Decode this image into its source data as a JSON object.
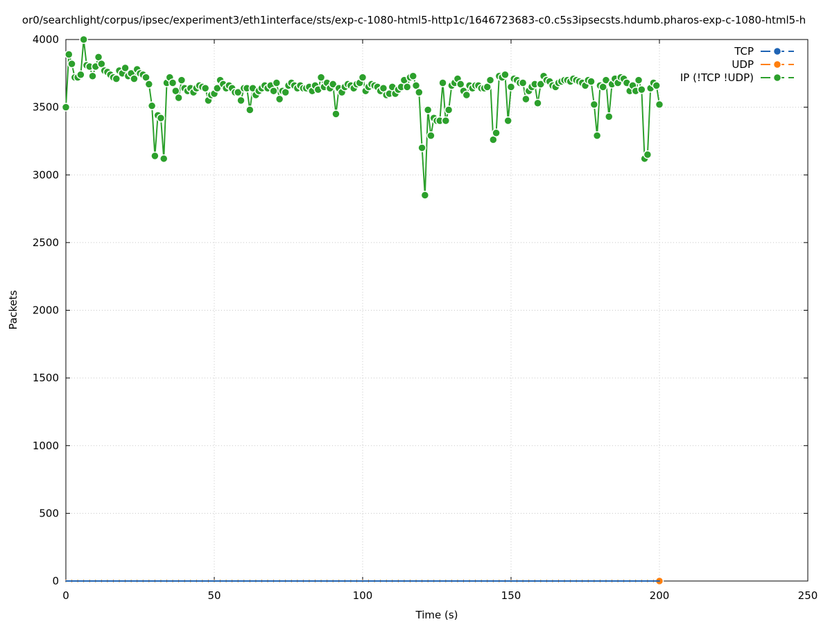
{
  "chart_data": {
    "type": "line",
    "title": "or0/searchlight/corpus/ipsec/experiment3/eth1interface/sts/exp-c-1080-html5-http1c/1646723683-c0.c5s3ipsecsts.hdumb.pharos-exp-c-1080-html5-h",
    "xlabel": "Time (s)",
    "ylabel": "Packets",
    "xlim": [
      0,
      250
    ],
    "ylim": [
      0,
      4000
    ],
    "xticks": [
      0,
      50,
      100,
      150,
      200,
      250
    ],
    "yticks": [
      0,
      500,
      1000,
      1500,
      2000,
      2500,
      3000,
      3500,
      4000
    ],
    "grid": true,
    "legend_position": "top-right",
    "series": [
      {
        "name": "TCP",
        "color": "#1f64b4",
        "x": [
          0,
          200
        ],
        "y": [
          0,
          0
        ]
      },
      {
        "name": "UDP",
        "color": "#ff7f0e",
        "x": [
          0,
          2,
          4,
          6,
          8,
          10,
          12,
          14,
          16,
          18,
          20,
          22,
          24,
          26,
          28,
          30,
          32,
          34,
          36,
          38,
          40,
          42,
          44,
          46,
          48,
          50,
          52,
          54,
          56,
          58,
          60,
          62,
          64,
          66,
          68,
          70,
          72,
          74,
          76,
          78,
          80,
          82,
          84,
          86,
          88,
          90,
          92,
          94,
          96,
          98,
          100,
          102,
          104,
          106,
          108,
          110,
          112,
          114,
          116,
          118,
          120,
          122,
          124,
          126,
          128,
          130,
          132,
          134,
          136,
          138,
          140,
          142,
          144,
          146,
          148,
          150,
          152,
          154,
          156,
          158,
          160,
          162,
          164,
          166,
          168,
          170,
          172,
          174,
          176,
          178,
          180,
          182,
          184,
          186,
          188,
          190,
          192,
          194,
          196,
          198,
          200
        ],
        "y": [
          0,
          0,
          0,
          0,
          0,
          0,
          0,
          0,
          0,
          0,
          0,
          0,
          0,
          0,
          0,
          0,
          0,
          0,
          0,
          0,
          0,
          0,
          0,
          0,
          0,
          0,
          0,
          0,
          0,
          0,
          0,
          0,
          0,
          0,
          0,
          0,
          0,
          0,
          0,
          0,
          0,
          0,
          0,
          0,
          0,
          0,
          0,
          0,
          0,
          0,
          0,
          0,
          0,
          0,
          0,
          0,
          0,
          0,
          0,
          0,
          0,
          0,
          0,
          0,
          0,
          0,
          0,
          0,
          0,
          0,
          0,
          0,
          0,
          0,
          0,
          0,
          0,
          0,
          0,
          0,
          0,
          0,
          0,
          0,
          0,
          0,
          0,
          0,
          0,
          0,
          0,
          0,
          0,
          0,
          0,
          0,
          0,
          0,
          0,
          0,
          0
        ]
      },
      {
        "name": "IP (!TCP  !UDP)",
        "color": "#2ca02c",
        "x": [
          0,
          1,
          2,
          3,
          4,
          5,
          6,
          7,
          8,
          9,
          10,
          11,
          12,
          13,
          14,
          15,
          16,
          17,
          18,
          19,
          20,
          21,
          22,
          23,
          24,
          25,
          26,
          27,
          28,
          29,
          30,
          31,
          32,
          33,
          34,
          35,
          36,
          37,
          38,
          39,
          40,
          41,
          42,
          43,
          44,
          45,
          46,
          47,
          48,
          49,
          50,
          51,
          52,
          53,
          54,
          55,
          56,
          57,
          58,
          59,
          60,
          61,
          62,
          63,
          64,
          65,
          66,
          67,
          68,
          69,
          70,
          71,
          72,
          73,
          74,
          75,
          76,
          77,
          78,
          79,
          80,
          81,
          82,
          83,
          84,
          85,
          86,
          87,
          88,
          89,
          90,
          91,
          92,
          93,
          94,
          95,
          96,
          97,
          98,
          99,
          100,
          101,
          102,
          103,
          104,
          105,
          106,
          107,
          108,
          109,
          110,
          111,
          112,
          113,
          114,
          115,
          116,
          117,
          118,
          119,
          120,
          121,
          122,
          123,
          124,
          125,
          126,
          127,
          128,
          129,
          130,
          131,
          132,
          133,
          134,
          135,
          136,
          137,
          138,
          139,
          140,
          141,
          142,
          143,
          144,
          145,
          146,
          147,
          148,
          149,
          150,
          151,
          152,
          153,
          154,
          155,
          156,
          157,
          158,
          159,
          160,
          161,
          162,
          163,
          164,
          165,
          166,
          167,
          168,
          169,
          170,
          171,
          172,
          173,
          174,
          175,
          176,
          177,
          178,
          179,
          180,
          181,
          182,
          183,
          184,
          185,
          186,
          187,
          188,
          189,
          190,
          191,
          192,
          193,
          194,
          195,
          196,
          197,
          198,
          199,
          200
        ],
        "y": [
          3500,
          3890,
          3820,
          3720,
          3720,
          3740,
          4000,
          3810,
          3800,
          3730,
          3800,
          3870,
          3820,
          3770,
          3760,
          3740,
          3720,
          3710,
          3770,
          3750,
          3790,
          3730,
          3750,
          3710,
          3780,
          3750,
          3740,
          3720,
          3670,
          3510,
          3140,
          3440,
          3420,
          3120,
          3680,
          3720,
          3680,
          3620,
          3570,
          3700,
          3640,
          3620,
          3640,
          3610,
          3640,
          3660,
          3650,
          3640,
          3550,
          3590,
          3600,
          3640,
          3700,
          3670,
          3640,
          3660,
          3640,
          3610,
          3610,
          3550,
          3640,
          3640,
          3480,
          3640,
          3590,
          3620,
          3640,
          3660,
          3640,
          3660,
          3620,
          3680,
          3560,
          3620,
          3610,
          3660,
          3680,
          3660,
          3640,
          3660,
          3640,
          3640,
          3650,
          3620,
          3660,
          3630,
          3720,
          3650,
          3680,
          3640,
          3670,
          3450,
          3640,
          3610,
          3650,
          3670,
          3660,
          3640,
          3670,
          3680,
          3720,
          3620,
          3650,
          3670,
          3660,
          3650,
          3620,
          3640,
          3590,
          3600,
          3650,
          3600,
          3630,
          3650,
          3700,
          3650,
          3720,
          3730,
          3660,
          3610,
          3200,
          2850,
          3480,
          3290,
          3420,
          3400,
          3400,
          3680,
          3400,
          3480,
          3660,
          3680,
          3710,
          3670,
          3620,
          3590,
          3660,
          3640,
          3660,
          3660,
          3640,
          3640,
          3650,
          3700,
          3260,
          3310,
          3730,
          3720,
          3740,
          3400,
          3650,
          3710,
          3700,
          3680,
          3680,
          3560,
          3620,
          3650,
          3670,
          3530,
          3670,
          3730,
          3700,
          3690,
          3660,
          3650,
          3680,
          3690,
          3700,
          3700,
          3690,
          3710,
          3700,
          3690,
          3680,
          3660,
          3700,
          3690,
          3520,
          3290,
          3660,
          3650,
          3700,
          3430,
          3670,
          3710,
          3680,
          3720,
          3710,
          3680,
          3620,
          3660,
          3620,
          3700,
          3630,
          3120,
          3150,
          3640,
          3680,
          3660,
          3520
        ]
      }
    ]
  }
}
